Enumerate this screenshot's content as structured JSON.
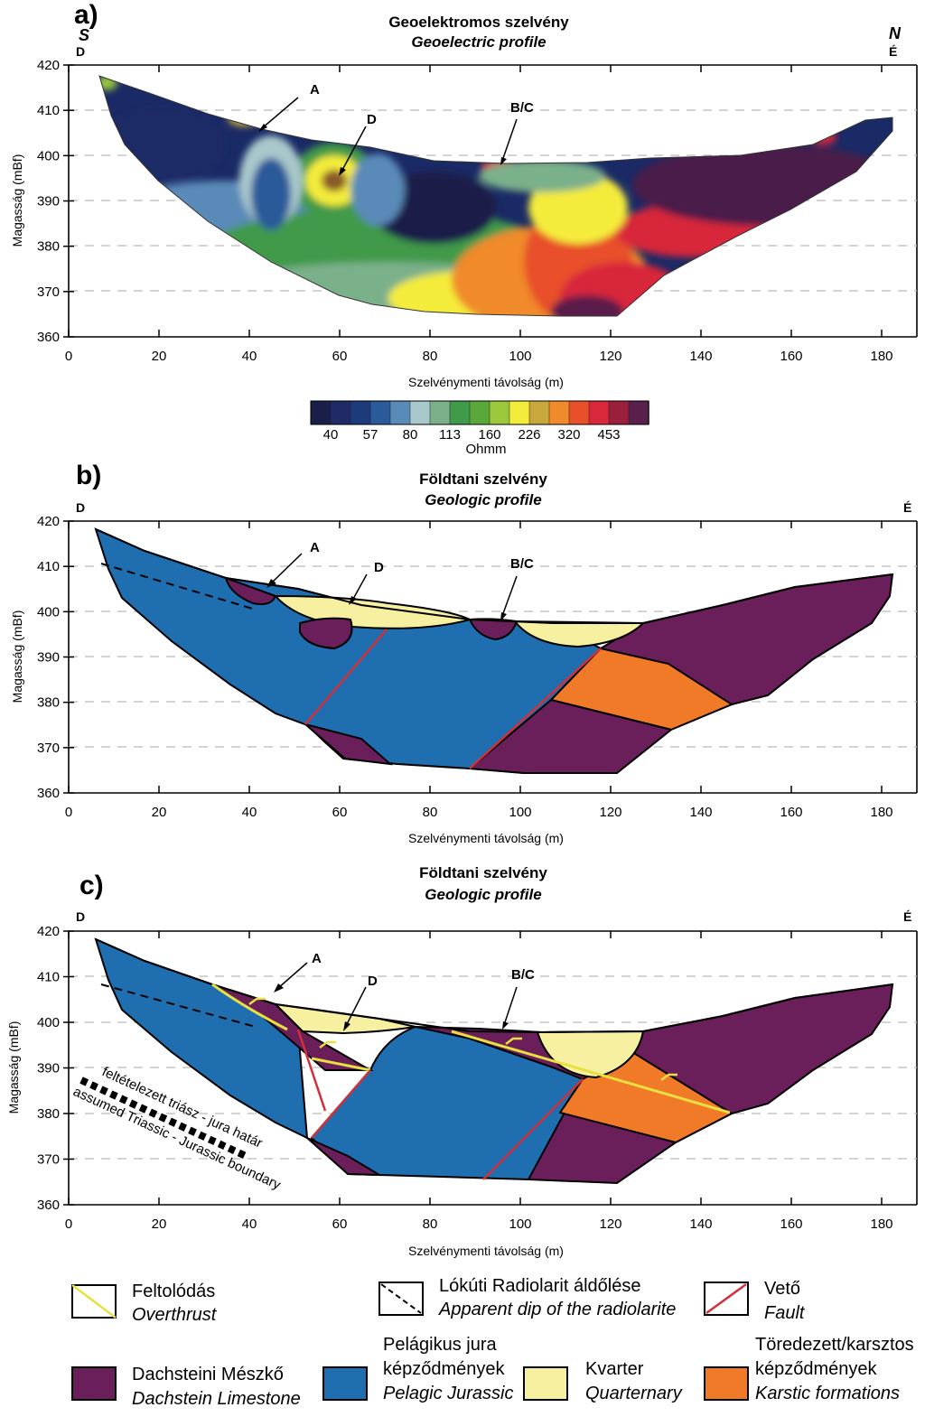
{
  "panels": [
    {
      "letter": "a)",
      "title_hu": "Geoelektromos szelvény",
      "title_en": "Geoelectric profile",
      "left_top": "S",
      "left_bottom": "D",
      "right_top": "N",
      "right_bottom": "É",
      "ylabel": "Magasság (mBf)",
      "xlabel": "Szelvénymenti távolság (m)",
      "markers": [
        "A",
        "D",
        "B/C"
      ]
    },
    {
      "letter": "b)",
      "title_hu": "Földtani szelvény",
      "title_en": "Geologic profile",
      "left_top": "",
      "left_bottom": "D",
      "right_top": "",
      "right_bottom": "É",
      "ylabel": "Magasság (mBf)",
      "xlabel": "Szelvénymenti távolság (m)",
      "markers": [
        "A",
        "D",
        "B/C"
      ]
    },
    {
      "letter": "c)",
      "title_hu": "Földtani szelvény",
      "title_en": "Geologic profile",
      "left_top": "",
      "left_bottom": "D",
      "right_top": "",
      "right_bottom": "É",
      "ylabel": "Magasság (mBf)",
      "xlabel": "Szelvénymenti távolság (m)",
      "markers": [
        "A",
        "D",
        "B/C"
      ],
      "boundary_hu": "feltételezett triász - jura határ",
      "boundary_en": "assumed Triassic - Jurassic boundary"
    }
  ],
  "x_ticks": [
    "0",
    "20",
    "40",
    "60",
    "80",
    "100",
    "120",
    "140",
    "160",
    "180"
  ],
  "y_ticks": [
    "420",
    "410",
    "400",
    "390",
    "380",
    "370",
    "360"
  ],
  "colorbar": {
    "unit": "Ohmm",
    "labels": [
      "40",
      "57",
      "80",
      "113",
      "160",
      "226",
      "320",
      "453"
    ],
    "colors": [
      "#1a1f4a",
      "#1f2a66",
      "#1d3a7a",
      "#2a5a9a",
      "#5a8ab8",
      "#a8c8cc",
      "#7ab08a",
      "#3f9a4a",
      "#5aa83a",
      "#9ac83a",
      "#f4ec3a",
      "#c8a83a",
      "#f08a2a",
      "#e8502a",
      "#d8283a",
      "#9a1f3a",
      "#5a1f4a"
    ]
  },
  "legend": [
    {
      "key": "overthrust",
      "hu": "Feltolódás",
      "en": "Overthrust",
      "color": "#e8e040"
    },
    {
      "key": "radiolarite",
      "hu": "Lókúti Radiolarit áldőlése",
      "en": "Apparent dip of the radiolarite",
      "color": "#000000"
    },
    {
      "key": "fault",
      "hu": "Vető",
      "en": "Fault",
      "color": "#d0303a"
    },
    {
      "key": "dachstein",
      "hu": "Dachsteini Mészkő",
      "en": "Dachstein Limestone",
      "color": "#6a1f5a"
    },
    {
      "key": "jurassic",
      "hu1": "Pelágikus jura",
      "hu2": "képződmények",
      "en": "Pelagic Jurassic",
      "color": "#1f6fb0"
    },
    {
      "key": "quaternary",
      "hu": "Kvarter",
      "en": "Quarternary",
      "color": "#f6f0a0"
    },
    {
      "key": "karstic",
      "hu1": "Töredezett/karsztos",
      "hu2": "képződmények",
      "en": "Karstic formations",
      "color": "#f07a28"
    }
  ],
  "colors": {
    "dachstein": "#6a1f5a",
    "jurassic": "#1f6fb0",
    "quaternary": "#f6f0a0",
    "karstic": "#f07a28",
    "fault": "#d0303a",
    "overthrust": "#e8e040"
  }
}
